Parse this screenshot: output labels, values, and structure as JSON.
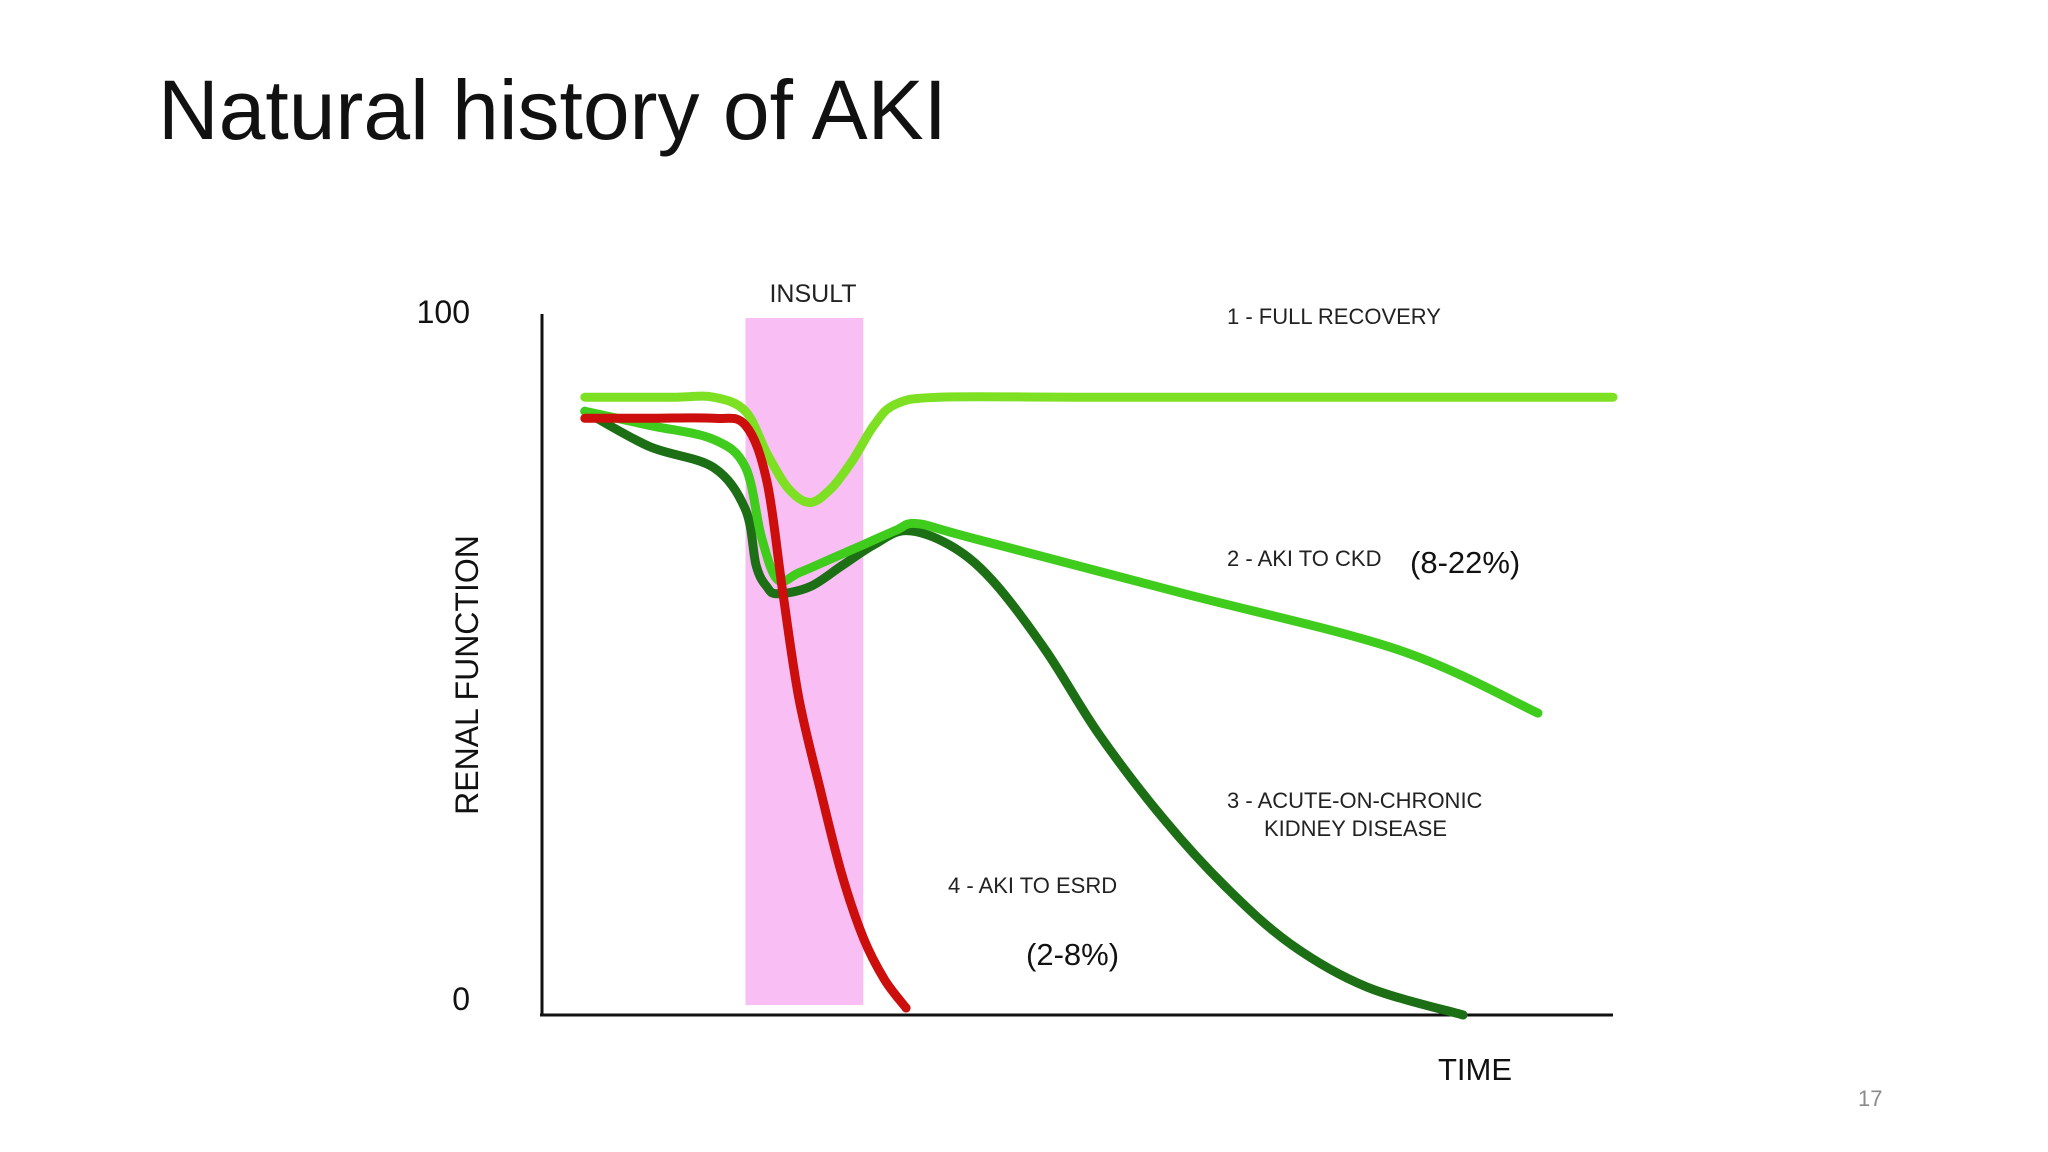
{
  "slide": {
    "title": "Natural history of AKI",
    "page_number": "17"
  },
  "chart_data": {
    "type": "line",
    "xlabel": "TIME",
    "ylabel": "RENAL FUNCTION",
    "ylim": [
      0,
      100
    ],
    "xlim": [
      0,
      100
    ],
    "yticks": [
      "100",
      "0"
    ],
    "grid": false,
    "legend": "none",
    "insult": {
      "label": "INSULT",
      "x_range": [
        19,
        30
      ],
      "color": "#f9bff5"
    },
    "series": [
      {
        "name": "1 - FULL RECOVERY",
        "label_lines": [
          "1 - FULL RECOVERY"
        ],
        "color": "#7ee023",
        "x": [
          4,
          12,
          16,
          19,
          21,
          23,
          25,
          27,
          29,
          31,
          33,
          37,
          50,
          70,
          90,
          100
        ],
        "y": [
          88,
          88,
          88,
          86,
          80,
          75,
          73,
          75,
          79,
          84,
          87,
          88,
          88,
          88,
          88,
          88
        ]
      },
      {
        "name": "2 - AKI TO CKD",
        "label_lines": [
          "2 - AKI TO CKD"
        ],
        "annotation": "(8-22%)",
        "color": "#3fcc1c",
        "x": [
          4,
          10,
          16,
          19,
          20.5,
          22,
          24,
          27,
          30,
          33,
          35,
          40,
          60,
          80,
          93
        ],
        "y": [
          86,
          84,
          82,
          78,
          68,
          62,
          63,
          65,
          67,
          69,
          70,
          68,
          60,
          52,
          43
        ]
      },
      {
        "name": "3 - ACUTE-ON-CHRONIC KIDNEY DISEASE",
        "label_lines": [
          "3 - ACUTE-ON-CHRONIC",
          "KIDNEY DISEASE"
        ],
        "color": "#1c6f15",
        "x": [
          4,
          10,
          16,
          19,
          20,
          21,
          22,
          25,
          28,
          31,
          34,
          38,
          42,
          47,
          52,
          58,
          64,
          70,
          77,
          86
        ],
        "y": [
          86,
          81,
          78,
          72,
          64,
          61,
          60,
          61,
          64,
          67,
          69,
          67,
          62,
          52,
          40,
          28,
          18,
          10,
          4,
          0
        ]
      },
      {
        "name": "4 - AKI TO ESRD",
        "label_lines": [
          "4 - AKI TO ESRD"
        ],
        "annotation": "(2-8%)",
        "color": "#cc0e0c",
        "x": [
          4,
          10,
          16,
          19,
          21,
          22.5,
          24,
          26,
          28,
          30,
          32,
          34
        ],
        "y": [
          85,
          85,
          85,
          84,
          76,
          60,
          45,
          32,
          20,
          11,
          5,
          1
        ]
      }
    ]
  }
}
